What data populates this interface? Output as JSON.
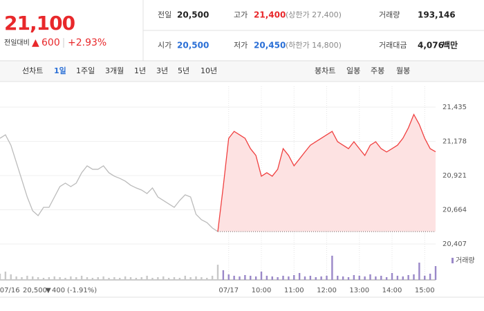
{
  "header": {
    "price": "21,100",
    "change_label": "전일대비",
    "arrow": "▲",
    "change": "600",
    "rate": "+2.93%",
    "stats": [
      {
        "label": "전일",
        "value": "20,500"
      },
      {
        "label": "고가",
        "value": "21,400",
        "note": "(상한가 27,400)"
      },
      {
        "label": "거래량",
        "value": "193,146"
      },
      {
        "label": "시가",
        "value": "20,500"
      },
      {
        "label": "저가",
        "value": "20,450",
        "note": "(하한가 14,800)"
      },
      {
        "label": "거래대금",
        "value": "4,076",
        "unit": "백만"
      }
    ]
  },
  "tabs": {
    "line_label": "선차트",
    "line": [
      "1일",
      "1주일",
      "3개월",
      "1년",
      "3년",
      "5년",
      "10년"
    ],
    "candle_label": "봉차트",
    "candle": [
      "일봉",
      "주봉",
      "월봉"
    ]
  },
  "chart_data": {
    "type": "line",
    "xlim": [
      0,
      80
    ],
    "ylim": [
      20407,
      21435
    ],
    "yticks": [
      {
        "value": 21435,
        "label": "21,435"
      },
      {
        "value": 21178,
        "label": "21,178"
      },
      {
        "value": 20921,
        "label": "20,921"
      },
      {
        "value": 20664,
        "label": "20,664"
      },
      {
        "value": 20407,
        "label": "20,407"
      }
    ],
    "xticks": [
      {
        "value": 1.8,
        "label": "07/16"
      },
      {
        "value": 42,
        "label": "07/17"
      },
      {
        "value": 48,
        "label": "10:00"
      },
      {
        "value": 54,
        "label": "11:00"
      },
      {
        "value": 60,
        "label": "12:00"
      },
      {
        "value": 66,
        "label": "13:00"
      },
      {
        "value": 72,
        "label": "14:00"
      },
      {
        "value": 78,
        "label": "15:00"
      }
    ],
    "baseline": 20500,
    "series": [
      {
        "color": "#bbbbbb",
        "values": [
          21201,
          21227,
          21149,
          21020,
          20890,
          20760,
          20656,
          20620,
          20682,
          20682,
          20760,
          20838,
          20864,
          20838,
          20864,
          20942,
          20994,
          20968,
          20968,
          20994,
          20942,
          20916,
          20900,
          20879,
          20848,
          20828,
          20812,
          20786,
          20828,
          20760,
          20734,
          20708,
          20682,
          20734,
          20776,
          20760,
          20630,
          20589,
          20568,
          20527,
          20500,
          null,
          null,
          null,
          null,
          null,
          null,
          null,
          null,
          null,
          null,
          null,
          null,
          null,
          null,
          null,
          null,
          null,
          null,
          null,
          null,
          null,
          null,
          null,
          null,
          null,
          null,
          null,
          null,
          null,
          null,
          null,
          null,
          null,
          null,
          null,
          null,
          null,
          null,
          null,
          null
        ]
      },
      {
        "color": "#f04040",
        "fill": "#fde2e2",
        "values": [
          null,
          null,
          null,
          null,
          null,
          null,
          null,
          null,
          null,
          null,
          null,
          null,
          null,
          null,
          null,
          null,
          null,
          null,
          null,
          null,
          null,
          null,
          null,
          null,
          null,
          null,
          null,
          null,
          null,
          null,
          null,
          null,
          null,
          null,
          null,
          null,
          null,
          null,
          null,
          null,
          20500,
          20838,
          21201,
          21253,
          21227,
          21201,
          21123,
          21072,
          20916,
          20942,
          20916,
          20968,
          21123,
          21072,
          20994,
          21046,
          21098,
          21149,
          21175,
          21201,
          21227,
          21253,
          21175,
          21149,
          21123,
          21175,
          21123,
          21072,
          21149,
          21175,
          21123,
          21098,
          21123,
          21149,
          21201,
          21279,
          21380,
          21305,
          21201,
          21123,
          21100
        ]
      }
    ],
    "volume": {
      "name": "거래량",
      "color": "#9a88c8",
      "prev_color": "#c8c8c8",
      "values": [
        9,
        12,
        8,
        5,
        4,
        6,
        5,
        4,
        3,
        4,
        5,
        4,
        3,
        5,
        4,
        6,
        4,
        3,
        4,
        5,
        3,
        4,
        3,
        5,
        4,
        3,
        4,
        6,
        3,
        4,
        5,
        3,
        4,
        3,
        6,
        4,
        5,
        4,
        3,
        6,
        22,
        14,
        8,
        6,
        5,
        7,
        6,
        5,
        12,
        6,
        5,
        4,
        6,
        5,
        7,
        10,
        5,
        6,
        4,
        5,
        6,
        35,
        6,
        5,
        4,
        7,
        6,
        5,
        8,
        5,
        6,
        4,
        10,
        6,
        5,
        7,
        8,
        25,
        6,
        9,
        20
      ]
    },
    "prev_summary": {
      "close": "20,500",
      "arrow": "▼",
      "change": "400",
      "rate": "(-1.91%)"
    }
  }
}
